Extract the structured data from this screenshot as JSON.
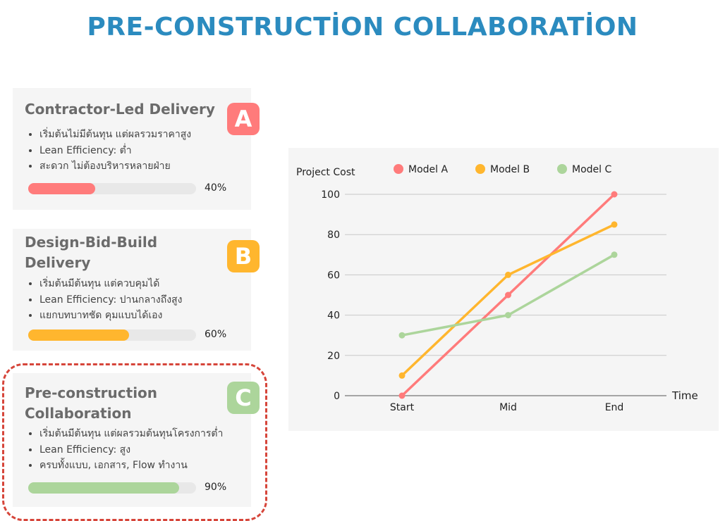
{
  "title": "PRE-CONSTRUCTİON COLLABORATİON",
  "cards": [
    {
      "title": "Contractor-Led Delivery",
      "badge": "A",
      "color": "#ff7b7b",
      "bullets": [
        "เริ่มต้นไม่มีต้นทุน แต่ผลรวมราคาสูง",
        "Lean Efficiency: ต่ำ",
        "สะดวก ไม่ต้องบริหารหลายฝ่าย"
      ],
      "progress": 40,
      "progress_label": "40%"
    },
    {
      "title": "Design-Bid-Build Delivery",
      "badge": "B",
      "color": "#ffb62e",
      "bullets": [
        "เริ่มต้นมีต้นทุน แต่ควบคุมได้",
        "Lean Efficiency: ปานกลางถึงสูง",
        "แยกบทบาทชัด คุมแบบได้เอง"
      ],
      "progress": 60,
      "progress_label": "60%"
    },
    {
      "title": "Pre-construction Collaboration",
      "badge": "C",
      "color": "#acd59b",
      "bullets": [
        "เริ่มต้นมีต้นทุน แต่ผลรวมต้นทุนโครงการต่ำ",
        "Lean Efficiency: สูง",
        "ครบทั้งแบบ, เอกสาร, Flow ทำงาน"
      ],
      "progress": 90,
      "progress_label": "90%"
    }
  ],
  "chart_data": {
    "type": "line",
    "ylabel": "Project Cost",
    "xlabel": "Time",
    "categories": [
      "Start",
      "Mid",
      "End"
    ],
    "yticks": [
      0,
      20,
      40,
      60,
      80,
      100
    ],
    "ylim": [
      0,
      100
    ],
    "grid": true,
    "legend": "top",
    "series": [
      {
        "name": "Model A",
        "color": "#ff7b7b",
        "values": [
          0,
          50,
          100
        ]
      },
      {
        "name": "Model B",
        "color": "#ffb62e",
        "values": [
          10,
          60,
          85
        ]
      },
      {
        "name": "Model C",
        "color": "#acd59b",
        "values": [
          30,
          40,
          70
        ]
      }
    ]
  }
}
